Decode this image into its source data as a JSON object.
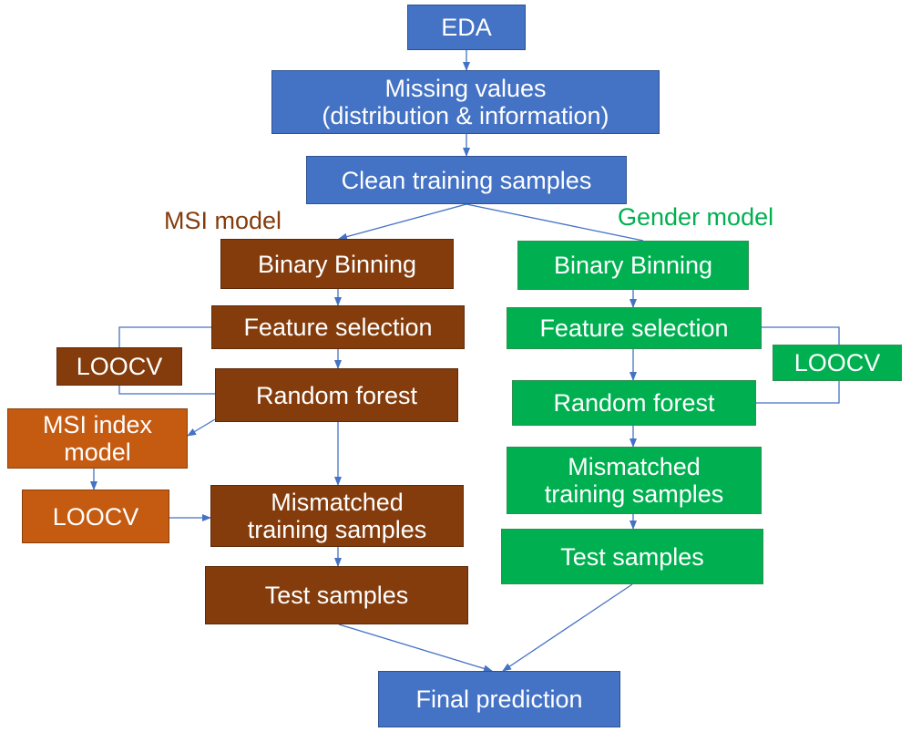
{
  "diagram": {
    "top": {
      "eda": "EDA",
      "missing_line1": "Missing values",
      "missing_line2": "(distribution & information)",
      "clean": "Clean training samples"
    },
    "msi_branch": {
      "title": "MSI model",
      "binning": "Binary Binning",
      "feature_selection": "Feature selection",
      "loocv": "LOOCV",
      "random_forest": "Random forest",
      "index_model_line1": "MSI index",
      "index_model_line2": "model",
      "index_loocv": "LOOCV",
      "mismatched_line1": "Mismatched",
      "mismatched_line2": "training samples",
      "test": "Test samples"
    },
    "gender_branch": {
      "title": "Gender model",
      "binning": "Binary Binning",
      "feature_selection": "Feature selection",
      "loocv": "LOOCV",
      "random_forest": "Random forest",
      "mismatched_line1": "Mismatched",
      "mismatched_line2": "training samples",
      "test": "Test samples"
    },
    "final": "Final prediction",
    "colors": {
      "blue": "#4472c4",
      "brown": "#843c0c",
      "green": "#00b050",
      "orange": "#c55a11",
      "connector": "#4472c4"
    }
  }
}
